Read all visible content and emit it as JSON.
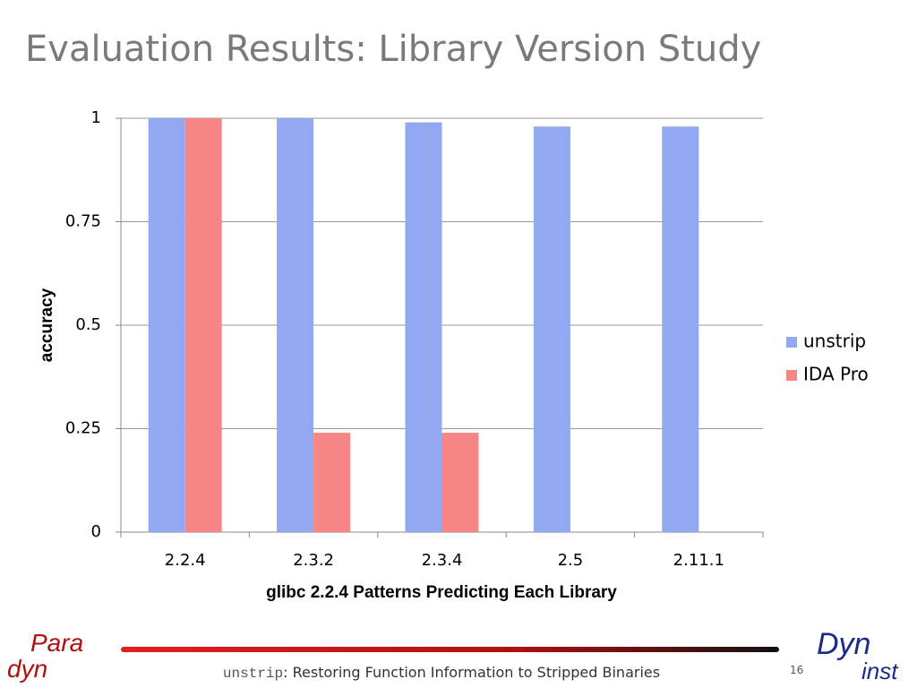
{
  "slide": {
    "title": "Evaluation Results: Library Version Study",
    "footer": {
      "code": "unstrip",
      "text": ": Restoring Function Information to Stripped Binaries",
      "page": "16"
    },
    "logos": {
      "left_top": "Para",
      "left_bottom": "dyn",
      "right_top": "Dyn",
      "right_bottom": "inst"
    }
  },
  "chart_data": {
    "type": "bar",
    "categories": [
      "2.2.4",
      "2.3.2",
      "2.3.4",
      "2.5",
      "2.11.1"
    ],
    "series": [
      {
        "name": "unstrip",
        "color": "#92a9f2",
        "values": [
          1,
          1,
          0.99,
          0.98,
          0.98
        ]
      },
      {
        "name": "IDA Pro",
        "color": "#f68585",
        "values": [
          1,
          0.24,
          0.24,
          0,
          0
        ]
      }
    ],
    "xlabel": "glibc 2.2.4 Patterns Predicting Each Library",
    "ylabel": "accuracy",
    "ylim": [
      0,
      1
    ],
    "yticks": [
      0,
      0.25,
      0.5,
      0.75,
      1
    ],
    "grid": true,
    "legend": "right"
  }
}
